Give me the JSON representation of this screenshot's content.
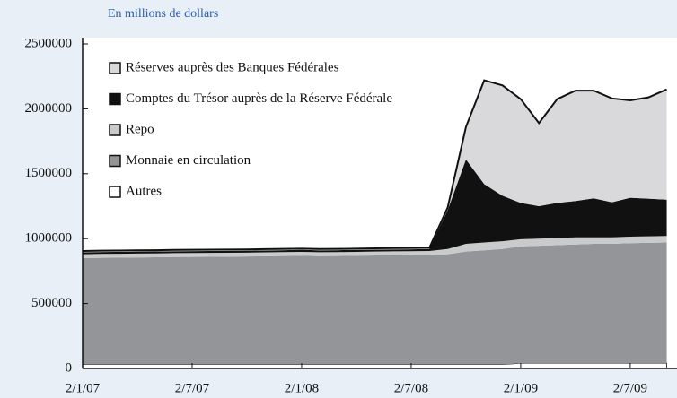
{
  "chart_data": {
    "type": "stacked_area",
    "subtitle": "En millions de dollars",
    "categories": [
      "2/1/07",
      null,
      null,
      null,
      null,
      null,
      "2/7/07",
      null,
      null,
      null,
      null,
      null,
      "2/1/08",
      null,
      null,
      null,
      null,
      null,
      "2/7/08",
      null,
      null,
      null,
      null,
      null,
      "2/1/09",
      null,
      null,
      null,
      null,
      null,
      "2/7/09",
      null,
      null
    ],
    "series": [
      {
        "name": "Autres",
        "color": "#ffffff",
        "values": [
          30000,
          30000,
          30000,
          30000,
          30000,
          30000,
          30000,
          30000,
          30000,
          30000,
          30000,
          30000,
          30000,
          30000,
          30000,
          30000,
          30000,
          30000,
          30000,
          30000,
          30000,
          30000,
          30000,
          30000,
          40000,
          40000,
          40000,
          40000,
          40000,
          40000,
          40000,
          40000,
          40000
        ]
      },
      {
        "name": "Monnaie en circulation",
        "color": "#939598",
        "values": [
          820000,
          822000,
          823000,
          825000,
          826000,
          828000,
          829000,
          830000,
          831000,
          832000,
          834000,
          836000,
          838000,
          835000,
          836000,
          838000,
          840000,
          842000,
          843000,
          845000,
          850000,
          870000,
          880000,
          890000,
          900000,
          905000,
          910000,
          915000,
          920000,
          920000,
          925000,
          928000,
          930000
        ]
      },
      {
        "name": "Repo",
        "color": "#c9cacc",
        "values": [
          30000,
          30000,
          30000,
          30000,
          30000,
          30000,
          30000,
          30000,
          30000,
          30000,
          30000,
          30000,
          30000,
          30000,
          30000,
          30000,
          30000,
          30000,
          30000,
          30000,
          40000,
          60000,
          60000,
          60000,
          55000,
          55000,
          55000,
          55000,
          50000,
          50000,
          50000,
          50000,
          50000
        ]
      },
      {
        "name": "Comptes du Trésor auprès de la Réserve Fédérale",
        "color": "#111111",
        "values": [
          15000,
          15000,
          15000,
          15000,
          15000,
          15000,
          15000,
          15000,
          15000,
          15000,
          15000,
          15000,
          15000,
          15000,
          15000,
          15000,
          15000,
          15000,
          15000,
          15000,
          300000,
          650000,
          450000,
          350000,
          280000,
          250000,
          270000,
          280000,
          300000,
          270000,
          300000,
          290000,
          280000
        ]
      },
      {
        "name": "Réserves auprès des Banques Fédérales",
        "color": "#d9d9db",
        "values": [
          10000,
          10000,
          10000,
          10000,
          10000,
          10000,
          10000,
          10000,
          10000,
          10000,
          10000,
          10000,
          10000,
          10000,
          10000,
          10000,
          10000,
          10000,
          10000,
          10000,
          20000,
          250000,
          800000,
          850000,
          800000,
          640000,
          800000,
          850000,
          830000,
          800000,
          750000,
          780000,
          850000
        ]
      }
    ],
    "ylim": [
      0,
      2500000
    ],
    "yticks": [
      0,
      500000,
      1000000,
      1500000,
      2000000,
      2500000
    ]
  }
}
